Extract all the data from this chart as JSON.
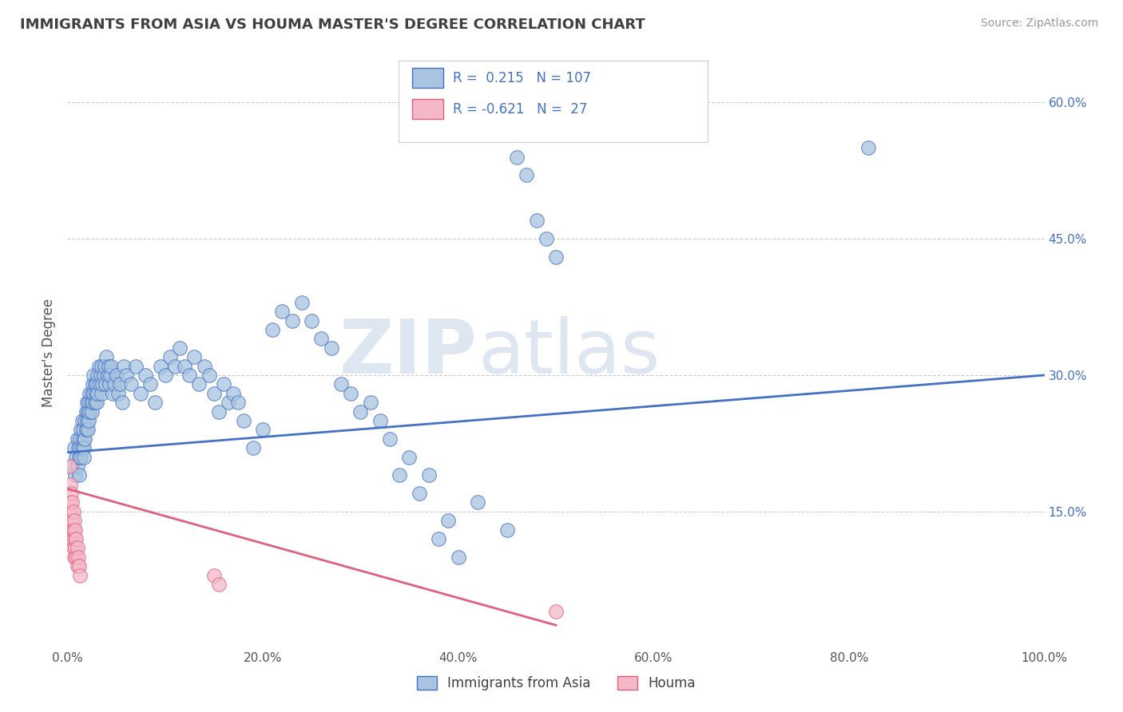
{
  "title": "IMMIGRANTS FROM ASIA VS HOUMA MASTER'S DEGREE CORRELATION CHART",
  "source_text": "Source: ZipAtlas.com",
  "xlabel": "Immigrants from Asia",
  "ylabel": "Master's Degree",
  "xlim": [
    0,
    1.0
  ],
  "ylim": [
    0,
    0.65
  ],
  "xticks": [
    0.0,
    0.2,
    0.4,
    0.6,
    0.8,
    1.0
  ],
  "xticklabels": [
    "0.0%",
    "20.0%",
    "40.0%",
    "60.0%",
    "80.0%",
    "100.0%"
  ],
  "ytick_positions": [
    0.15,
    0.3,
    0.45,
    0.6
  ],
  "yticklabels": [
    "15.0%",
    "30.0%",
    "45.0%",
    "60.0%"
  ],
  "blue_color": "#a8c4e0",
  "blue_line_color": "#4472c4",
  "pink_color": "#f4b8c8",
  "pink_line_color": "#e06080",
  "watermark_zip": "ZIP",
  "watermark_atlas": "atlas",
  "title_color": "#404040",
  "grid_color": "#cccccc",
  "blue_scatter": [
    [
      0.005,
      0.2
    ],
    [
      0.007,
      0.22
    ],
    [
      0.008,
      0.19
    ],
    [
      0.009,
      0.21
    ],
    [
      0.01,
      0.23
    ],
    [
      0.01,
      0.2
    ],
    [
      0.011,
      0.22
    ],
    [
      0.012,
      0.21
    ],
    [
      0.012,
      0.19
    ],
    [
      0.013,
      0.23
    ],
    [
      0.013,
      0.22
    ],
    [
      0.014,
      0.24
    ],
    [
      0.014,
      0.21
    ],
    [
      0.015,
      0.25
    ],
    [
      0.015,
      0.22
    ],
    [
      0.016,
      0.23
    ],
    [
      0.016,
      0.24
    ],
    [
      0.017,
      0.22
    ],
    [
      0.017,
      0.21
    ],
    [
      0.018,
      0.25
    ],
    [
      0.018,
      0.23
    ],
    [
      0.019,
      0.26
    ],
    [
      0.019,
      0.24
    ],
    [
      0.02,
      0.27
    ],
    [
      0.02,
      0.25
    ],
    [
      0.021,
      0.26
    ],
    [
      0.021,
      0.24
    ],
    [
      0.022,
      0.27
    ],
    [
      0.022,
      0.25
    ],
    [
      0.023,
      0.28
    ],
    [
      0.023,
      0.26
    ],
    [
      0.024,
      0.27
    ],
    [
      0.025,
      0.28
    ],
    [
      0.025,
      0.26
    ],
    [
      0.026,
      0.29
    ],
    [
      0.026,
      0.27
    ],
    [
      0.027,
      0.28
    ],
    [
      0.027,
      0.3
    ],
    [
      0.028,
      0.27
    ],
    [
      0.028,
      0.29
    ],
    [
      0.029,
      0.28
    ],
    [
      0.03,
      0.29
    ],
    [
      0.03,
      0.27
    ],
    [
      0.031,
      0.3
    ],
    [
      0.031,
      0.28
    ],
    [
      0.032,
      0.31
    ],
    [
      0.033,
      0.29
    ],
    [
      0.034,
      0.3
    ],
    [
      0.035,
      0.28
    ],
    [
      0.035,
      0.31
    ],
    [
      0.036,
      0.29
    ],
    [
      0.037,
      0.3
    ],
    [
      0.038,
      0.31
    ],
    [
      0.039,
      0.29
    ],
    [
      0.04,
      0.32
    ],
    [
      0.041,
      0.3
    ],
    [
      0.042,
      0.31
    ],
    [
      0.043,
      0.29
    ],
    [
      0.044,
      0.3
    ],
    [
      0.045,
      0.31
    ],
    [
      0.046,
      0.28
    ],
    [
      0.048,
      0.29
    ],
    [
      0.05,
      0.3
    ],
    [
      0.052,
      0.28
    ],
    [
      0.054,
      0.29
    ],
    [
      0.056,
      0.27
    ],
    [
      0.058,
      0.31
    ],
    [
      0.06,
      0.3
    ],
    [
      0.065,
      0.29
    ],
    [
      0.07,
      0.31
    ],
    [
      0.075,
      0.28
    ],
    [
      0.08,
      0.3
    ],
    [
      0.085,
      0.29
    ],
    [
      0.09,
      0.27
    ],
    [
      0.095,
      0.31
    ],
    [
      0.1,
      0.3
    ],
    [
      0.105,
      0.32
    ],
    [
      0.11,
      0.31
    ],
    [
      0.115,
      0.33
    ],
    [
      0.12,
      0.31
    ],
    [
      0.125,
      0.3
    ],
    [
      0.13,
      0.32
    ],
    [
      0.135,
      0.29
    ],
    [
      0.14,
      0.31
    ],
    [
      0.145,
      0.3
    ],
    [
      0.15,
      0.28
    ],
    [
      0.155,
      0.26
    ],
    [
      0.16,
      0.29
    ],
    [
      0.165,
      0.27
    ],
    [
      0.17,
      0.28
    ],
    [
      0.175,
      0.27
    ],
    [
      0.18,
      0.25
    ],
    [
      0.19,
      0.22
    ],
    [
      0.2,
      0.24
    ],
    [
      0.21,
      0.35
    ],
    [
      0.22,
      0.37
    ],
    [
      0.23,
      0.36
    ],
    [
      0.24,
      0.38
    ],
    [
      0.25,
      0.36
    ],
    [
      0.26,
      0.34
    ],
    [
      0.27,
      0.33
    ],
    [
      0.28,
      0.29
    ],
    [
      0.29,
      0.28
    ],
    [
      0.3,
      0.26
    ],
    [
      0.31,
      0.27
    ],
    [
      0.32,
      0.25
    ],
    [
      0.33,
      0.23
    ],
    [
      0.34,
      0.19
    ],
    [
      0.35,
      0.21
    ],
    [
      0.36,
      0.17
    ],
    [
      0.37,
      0.19
    ],
    [
      0.38,
      0.12
    ],
    [
      0.39,
      0.14
    ],
    [
      0.4,
      0.1
    ],
    [
      0.42,
      0.16
    ],
    [
      0.45,
      0.13
    ],
    [
      0.46,
      0.54
    ],
    [
      0.47,
      0.52
    ],
    [
      0.48,
      0.47
    ],
    [
      0.49,
      0.45
    ],
    [
      0.5,
      0.43
    ],
    [
      0.82,
      0.55
    ]
  ],
  "pink_scatter": [
    [
      0.002,
      0.2
    ],
    [
      0.003,
      0.18
    ],
    [
      0.003,
      0.16
    ],
    [
      0.004,
      0.17
    ],
    [
      0.004,
      0.15
    ],
    [
      0.004,
      0.13
    ],
    [
      0.005,
      0.16
    ],
    [
      0.005,
      0.14
    ],
    [
      0.005,
      0.12
    ],
    [
      0.006,
      0.15
    ],
    [
      0.006,
      0.13
    ],
    [
      0.006,
      0.11
    ],
    [
      0.007,
      0.14
    ],
    [
      0.007,
      0.12
    ],
    [
      0.007,
      0.1
    ],
    [
      0.008,
      0.13
    ],
    [
      0.008,
      0.11
    ],
    [
      0.009,
      0.12
    ],
    [
      0.009,
      0.1
    ],
    [
      0.01,
      0.11
    ],
    [
      0.01,
      0.09
    ],
    [
      0.011,
      0.1
    ],
    [
      0.012,
      0.09
    ],
    [
      0.013,
      0.08
    ],
    [
      0.15,
      0.08
    ],
    [
      0.155,
      0.07
    ],
    [
      0.5,
      0.04
    ]
  ],
  "blue_trendline": [
    [
      0.0,
      0.215
    ],
    [
      1.0,
      0.3
    ]
  ],
  "pink_trendline": [
    [
      0.0,
      0.175
    ],
    [
      0.5,
      0.025
    ]
  ]
}
